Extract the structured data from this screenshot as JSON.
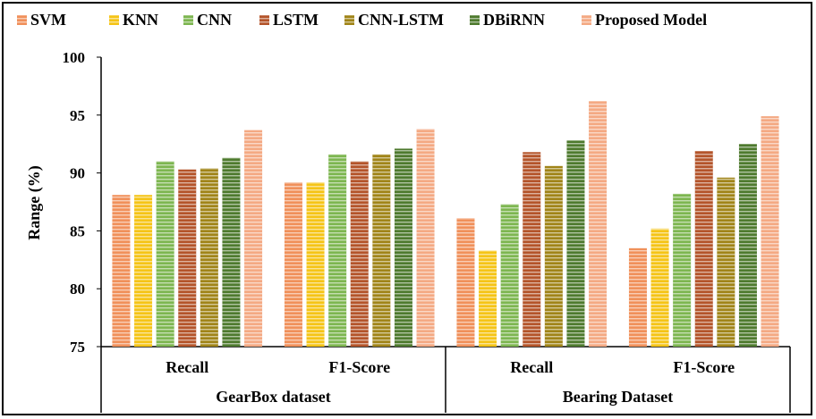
{
  "chart_data": {
    "type": "bar",
    "ylabel": "Range (%)",
    "ylim": [
      75,
      100
    ],
    "yticks": [
      "75",
      "80",
      "85",
      "90",
      "95",
      "100"
    ],
    "groups": [
      {
        "label": "GearBox dataset",
        "categories": [
          "Recall",
          "F1-Score"
        ]
      },
      {
        "label": "Bearing Dataset",
        "categories": [
          "Recall",
          "F1-Score"
        ]
      }
    ],
    "categories": [
      "Recall",
      "F1-Score",
      "Recall",
      "F1-Score"
    ],
    "series": [
      {
        "name": "SVM",
        "color": "#F0905A",
        "values": [
          88.1,
          89.2,
          86.1,
          83.5
        ]
      },
      {
        "name": "KNN",
        "color": "#F5C416",
        "values": [
          88.1,
          89.2,
          83.3,
          85.2
        ]
      },
      {
        "name": "CNN",
        "color": "#7DB650",
        "values": [
          91.0,
          91.6,
          87.3,
          88.2
        ]
      },
      {
        "name": "LSTM",
        "color": "#B4542A",
        "values": [
          90.3,
          91.0,
          91.8,
          91.9
        ]
      },
      {
        "name": "CNN-LSTM",
        "color": "#A08418",
        "values": [
          90.4,
          91.6,
          90.6,
          89.6
        ]
      },
      {
        "name": "DBiRNN",
        "color": "#4E7A2E",
        "values": [
          91.3,
          92.1,
          92.8,
          92.5
        ]
      },
      {
        "name": "Proposed Model",
        "color": "#F4A983",
        "values": [
          93.7,
          93.8,
          96.2,
          94.9
        ]
      }
    ],
    "grid": false,
    "legend_position": "top"
  }
}
